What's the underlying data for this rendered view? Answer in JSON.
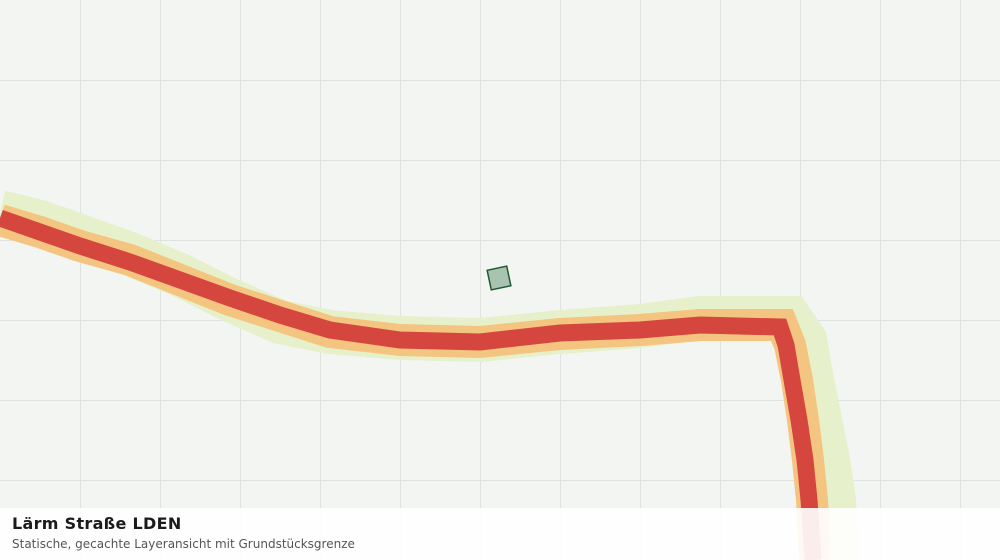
{
  "layer": {
    "title": "Lärm Straße LDEN",
    "subtitle": "Statische, gecachte Layeransicht mit Grundstücksgrenze"
  }
}
